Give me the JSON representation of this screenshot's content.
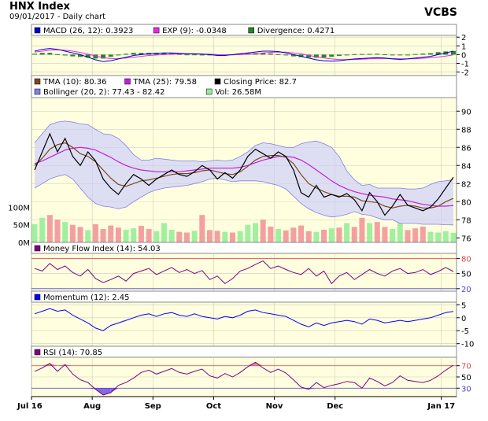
{
  "header": {
    "title": "HNX Index",
    "subtitle": "09/01/2017 - Daily chart",
    "brand": "VCBS"
  },
  "colors": {
    "panel_bg": "#ffffe0",
    "grid": "#ccccbb",
    "price": "#000000",
    "tma10": "#7b4a1e",
    "tma25": "#c020d8",
    "bollinger_fill": "#c8c8ff",
    "bollinger_line": "#8080e0",
    "vol_up": "#a0f0a0",
    "vol_down": "#f4a0a0",
    "macd": "#0000cc",
    "exp": "#ee22ee",
    "divergence": "#228822",
    "mfi": "#800080",
    "momentum": "#0000ff",
    "rsi": "#800080",
    "overbought": "#dd4444",
    "oversold": "#4444dd",
    "rsi_fill_high": "#ff6699",
    "rsi_fill_low": "#6644dd"
  },
  "chart_data": [
    {
      "type": "line",
      "name": "macd",
      "legend": [
        {
          "label": "MACD (26, 12): 0.3923",
          "color": "#0000cc"
        },
        {
          "label": "EXP (9): -0.0348",
          "color": "#ee22ee"
        },
        {
          "label": "Divergence: 0.4271",
          "color": "#228822"
        }
      ],
      "yticks": [
        "2",
        "1",
        "0",
        "-1",
        "-2"
      ],
      "ylim": [
        -2.4,
        2.2
      ],
      "macd": [
        0.4,
        0.6,
        0.7,
        0.6,
        0.4,
        0.2,
        0.0,
        -0.3,
        -0.6,
        -0.8,
        -0.7,
        -0.5,
        -0.3,
        -0.1,
        0.0,
        0.1,
        0.15,
        0.2,
        0.2,
        0.15,
        0.1,
        0.1,
        0.05,
        0.0,
        -0.1,
        -0.1,
        0.0,
        0.1,
        0.2,
        0.3,
        0.4,
        0.4,
        0.35,
        0.2,
        0.0,
        -0.2,
        -0.4,
        -0.6,
        -0.7,
        -0.75,
        -0.7,
        -0.6,
        -0.5,
        -0.45,
        -0.4,
        -0.35,
        -0.4,
        -0.5,
        -0.55,
        -0.5,
        -0.4,
        -0.3,
        -0.2,
        0.0,
        0.2,
        0.39
      ],
      "exp": [
        0.3,
        0.4,
        0.5,
        0.55,
        0.5,
        0.4,
        0.25,
        0.05,
        -0.15,
        -0.35,
        -0.45,
        -0.45,
        -0.4,
        -0.3,
        -0.2,
        -0.1,
        -0.05,
        0.0,
        0.05,
        0.08,
        0.08,
        0.08,
        0.06,
        0.04,
        0.0,
        -0.02,
        -0.02,
        0.0,
        0.05,
        0.12,
        0.2,
        0.26,
        0.3,
        0.28,
        0.2,
        0.08,
        -0.08,
        -0.24,
        -0.38,
        -0.5,
        -0.56,
        -0.58,
        -0.56,
        -0.52,
        -0.48,
        -0.45,
        -0.43,
        -0.45,
        -0.48,
        -0.49,
        -0.47,
        -0.42,
        -0.36,
        -0.28,
        -0.16,
        -0.03
      ]
    },
    {
      "type": "line",
      "name": "price",
      "legend": [
        {
          "label": "TMA (10): 80.36",
          "color": "#7b4a1e"
        },
        {
          "label": "TMA (25): 79.58",
          "color": "#c020d8"
        },
        {
          "label": "Closing Price: 82.7",
          "color": "#000000"
        },
        {
          "label": "Bollinger (20, 2): 77.43 - 82.42",
          "color": "#8080e0"
        },
        {
          "label": "Vol: 26.58M",
          "color": "#90ee90"
        }
      ],
      "yticks": [
        "90",
        "88",
        "86",
        "84",
        "82",
        "80",
        "78",
        "76"
      ],
      "ylim": [
        75.5,
        91.5
      ],
      "volume_ticks": [
        "100M",
        "50M",
        "0M"
      ],
      "volume_max": 130,
      "close": [
        83.5,
        85.5,
        87.5,
        85.5,
        87.0,
        85.0,
        84.0,
        85.5,
        84.5,
        82.5,
        81.5,
        80.8,
        82.0,
        83.0,
        82.5,
        81.8,
        82.5,
        83.0,
        83.5,
        83.0,
        82.8,
        83.3,
        84.0,
        83.5,
        82.5,
        83.2,
        82.6,
        83.5,
        85.0,
        85.8,
        85.3,
        84.8,
        85.5,
        85.0,
        83.5,
        81.0,
        80.5,
        81.8,
        80.5,
        80.8,
        80.5,
        80.9,
        80.2,
        79.0,
        81.0,
        80.0,
        78.5,
        79.5,
        80.8,
        79.6,
        79.3,
        79.0,
        79.4,
        80.3,
        81.5,
        82.7
      ],
      "tma10": [
        84.0,
        84.8,
        85.8,
        86.3,
        86.5,
        86.0,
        85.3,
        85.0,
        84.4,
        83.5,
        82.6,
        81.9,
        81.7,
        82.0,
        82.3,
        82.4,
        82.6,
        82.8,
        83.0,
        83.1,
        83.1,
        83.2,
        83.4,
        83.5,
        83.3,
        83.1,
        83.0,
        83.3,
        83.9,
        84.6,
        85.0,
        85.1,
        85.1,
        84.9,
        84.2,
        83.0,
        82.0,
        81.5,
        81.1,
        80.8,
        80.6,
        80.6,
        80.5,
        80.1,
        80.0,
        79.9,
        79.5,
        79.3,
        79.5,
        79.6,
        79.5,
        79.3,
        79.3,
        79.5,
        80.0,
        80.36
      ],
      "tma25": [
        84.2,
        84.5,
        84.9,
        85.3,
        85.7,
        85.9,
        86.0,
        85.9,
        85.7,
        85.3,
        84.9,
        84.4,
        84.0,
        83.7,
        83.5,
        83.4,
        83.3,
        83.3,
        83.3,
        83.3,
        83.4,
        83.5,
        83.6,
        83.7,
        83.7,
        83.7,
        83.7,
        83.8,
        84.0,
        84.3,
        84.6,
        84.8,
        85.0,
        85.0,
        84.9,
        84.6,
        84.1,
        83.5,
        82.9,
        82.3,
        81.8,
        81.4,
        81.1,
        80.9,
        80.7,
        80.6,
        80.5,
        80.3,
        80.2,
        80.1,
        79.9,
        79.7,
        79.6,
        79.5,
        79.5,
        79.58
      ],
      "boll_upper": [
        86.5,
        87.5,
        88.5,
        88.8,
        88.9,
        88.8,
        88.6,
        88.5,
        88.0,
        87.5,
        87.4,
        87.0,
        86.2,
        85.2,
        84.6,
        84.6,
        84.8,
        84.7,
        84.6,
        84.5,
        84.5,
        84.5,
        84.4,
        84.5,
        84.6,
        84.5,
        84.6,
        85.0,
        85.5,
        86.2,
        86.5,
        86.4,
        86.2,
        86.0,
        86.0,
        86.4,
        86.6,
        86.7,
        86.4,
        86.0,
        85.0,
        83.4,
        82.4,
        81.8,
        81.9,
        81.5,
        81.5,
        81.5,
        81.5,
        81.4,
        81.4,
        81.5,
        81.9,
        82.2,
        82.3,
        82.42
      ],
      "boll_lower": [
        81.5,
        82.0,
        82.5,
        82.8,
        83.0,
        82.5,
        81.5,
        80.5,
        79.8,
        79.5,
        79.4,
        79.2,
        79.4,
        80.0,
        80.5,
        81.0,
        81.3,
        81.5,
        81.6,
        81.7,
        81.8,
        82.0,
        82.2,
        82.5,
        82.6,
        82.4,
        82.2,
        82.3,
        82.3,
        82.3,
        82.2,
        82.0,
        81.8,
        81.4,
        80.6,
        79.8,
        79.2,
        78.8,
        78.5,
        78.3,
        78.4,
        78.6,
        78.9,
        78.6,
        78.5,
        78.2,
        78.0,
        78.0,
        77.6,
        77.6,
        77.6,
        77.5,
        77.5,
        77.5,
        77.45,
        77.43
      ],
      "volume": [
        52,
        70,
        78,
        65,
        58,
        50,
        44,
        35,
        52,
        38,
        48,
        42,
        36,
        40,
        47,
        38,
        32,
        55,
        36,
        30,
        28,
        33,
        78,
        35,
        33,
        30,
        28,
        32,
        50,
        55,
        65,
        45,
        38,
        34,
        42,
        48,
        32,
        30,
        36,
        40,
        42,
        55,
        44,
        70,
        55,
        58,
        44,
        38,
        55,
        35,
        40,
        45,
        30,
        28,
        32,
        27
      ],
      "volume_up": [
        true,
        true,
        false,
        false,
        true,
        false,
        false,
        true,
        false,
        false,
        false,
        false,
        true,
        true,
        false,
        false,
        true,
        true,
        true,
        false,
        false,
        true,
        false,
        false,
        false,
        true,
        false,
        true,
        true,
        true,
        false,
        false,
        true,
        false,
        false,
        false,
        false,
        true,
        false,
        true,
        false,
        true,
        false,
        false,
        true,
        false,
        false,
        true,
        true,
        false,
        false,
        false,
        true,
        true,
        true,
        true
      ]
    },
    {
      "type": "line",
      "name": "mfi",
      "legend": [
        {
          "label": "Money Flow Index (14): 54.03",
          "color": "#800080"
        }
      ],
      "yticks": [
        "80",
        "50",
        "20"
      ],
      "ylim": [
        15,
        90
      ],
      "levels": [
        80,
        20
      ],
      "values": [
        60,
        55,
        70,
        58,
        65,
        52,
        45,
        58,
        40,
        32,
        38,
        45,
        35,
        50,
        55,
        60,
        48,
        55,
        62,
        52,
        58,
        50,
        56,
        38,
        45,
        30,
        40,
        55,
        60,
        68,
        75,
        60,
        65,
        58,
        52,
        48,
        60,
        45,
        55,
        30,
        45,
        52,
        38,
        48,
        58,
        50,
        45,
        55,
        60,
        50,
        52,
        58,
        48,
        54,
        62,
        54
      ],
      "name_label": ""
    },
    {
      "type": "line",
      "name": "momentum",
      "legend": [
        {
          "label": "Momentum (12): 2.45",
          "color": "#0000ff"
        }
      ],
      "yticks": [
        "5",
        "0",
        "-5",
        "-10"
      ],
      "ylim": [
        -11,
        6
      ],
      "values": [
        1.5,
        2.5,
        3.5,
        2.5,
        3.0,
        1.0,
        -0.5,
        -2.0,
        -4.0,
        -5.0,
        -3.0,
        -2.0,
        -1.0,
        0.0,
        1.0,
        1.5,
        0.5,
        1.5,
        2.0,
        1.0,
        0.5,
        1.5,
        0.5,
        0.0,
        -0.5,
        0.5,
        0.0,
        1.0,
        2.5,
        3.0,
        2.0,
        1.5,
        1.0,
        0.5,
        -1.0,
        -2.5,
        -3.5,
        -2.0,
        -3.0,
        -2.0,
        -1.5,
        -1.0,
        -1.5,
        -2.5,
        -0.5,
        -1.0,
        -2.0,
        -1.5,
        -1.0,
        -1.5,
        -1.0,
        -0.5,
        0.0,
        1.0,
        2.0,
        2.45
      ]
    },
    {
      "type": "line",
      "name": "rsi",
      "legend": [
        {
          "label": "RSI (14): 70.85",
          "color": "#800080"
        }
      ],
      "yticks": [
        "70",
        "50",
        "30"
      ],
      "ylim": [
        15,
        85
      ],
      "levels": [
        70,
        30
      ],
      "values": [
        60,
        66,
        74,
        60,
        72,
        55,
        45,
        40,
        28,
        18,
        22,
        35,
        40,
        48,
        58,
        62,
        55,
        60,
        65,
        58,
        55,
        60,
        64,
        52,
        48,
        56,
        50,
        58,
        68,
        76,
        66,
        58,
        64,
        57,
        45,
        32,
        28,
        40,
        31,
        35,
        38,
        42,
        40,
        30,
        48,
        42,
        34,
        40,
        52,
        44,
        42,
        40,
        44,
        52,
        62,
        70.85
      ]
    }
  ],
  "xaxis": {
    "labels": [
      "Jul 16",
      "Aug",
      "Sep",
      "Oct",
      "Nov",
      "Dec",
      "Jan 17"
    ],
    "positions": [
      0,
      0.1429,
      0.2857,
      0.4286,
      0.5714,
      0.7143,
      0.9643
    ]
  }
}
